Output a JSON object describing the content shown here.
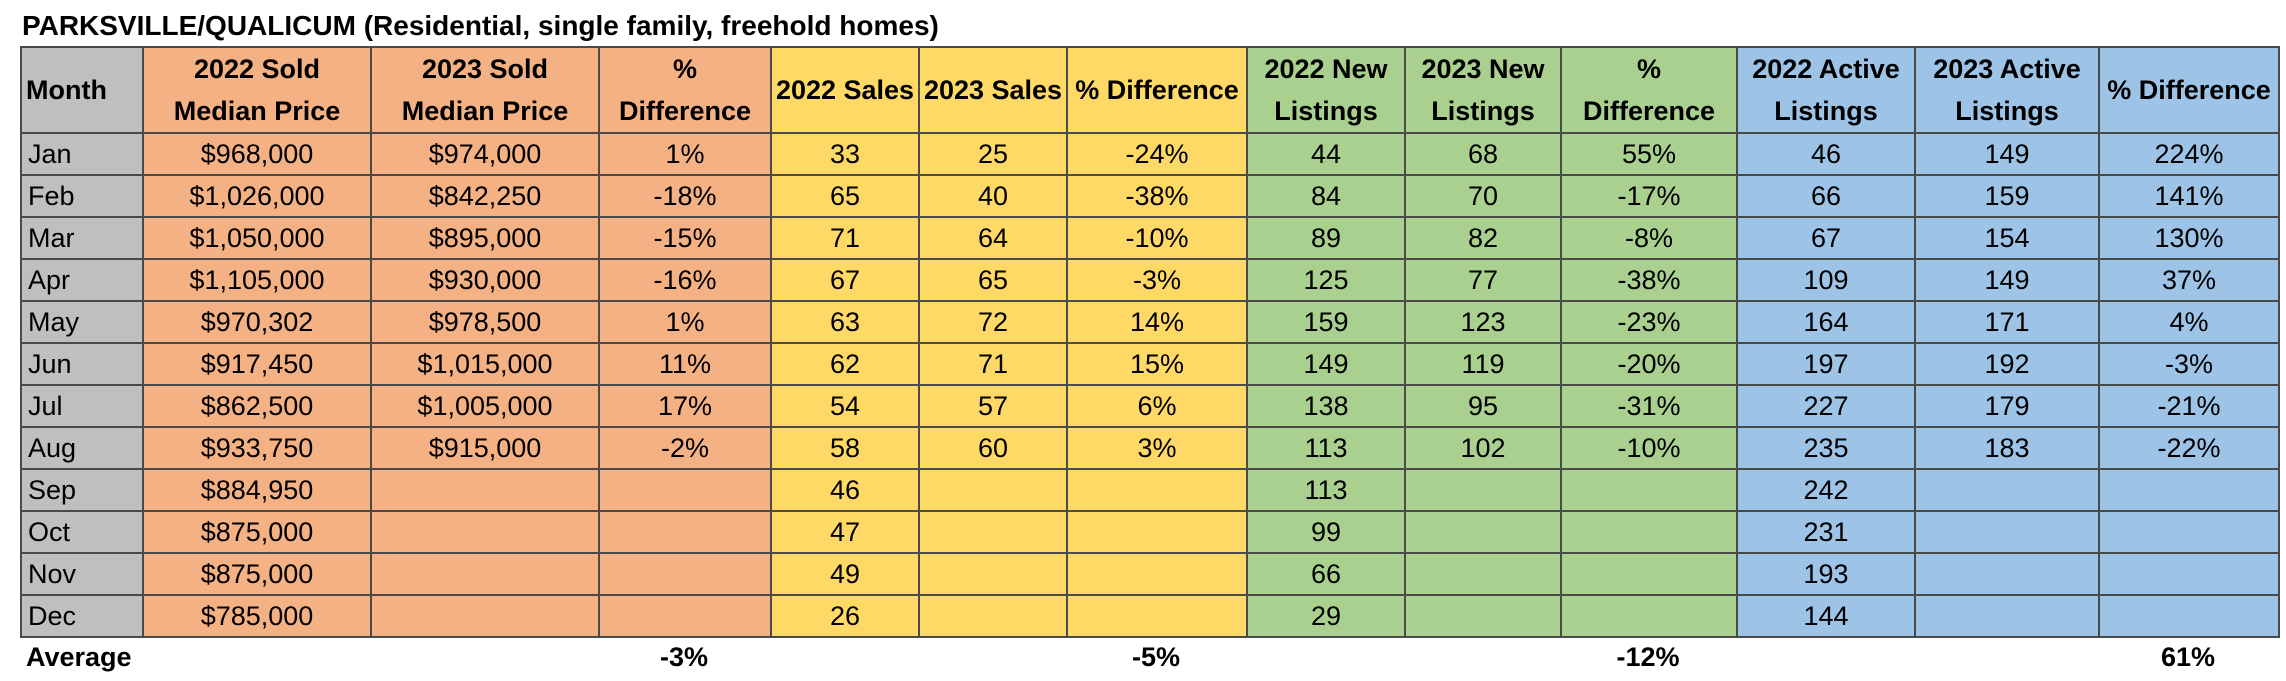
{
  "title": "PARKSVILLE/QUALICUM (Residential, single family, freehold homes)",
  "colors": {
    "month": "#bfbfbf",
    "price": "#f4b183",
    "sales": "#ffd966",
    "new_listings": "#a9d08e",
    "active_listings": "#9dc3e6"
  },
  "headers": {
    "month": "Month",
    "sold_2022_l1": "2022 Sold",
    "sold_2022_l2": "Median Price",
    "sold_2023_l1": "2023 Sold",
    "sold_2023_l2": "Median Price",
    "price_diff_l1": "%",
    "price_diff_l2": "Difference",
    "sales_2022": "2022 Sales",
    "sales_2023": "2023 Sales",
    "sales_diff": "% Difference",
    "new_2022_l1": "2022 New",
    "new_2022_l2": "Listings",
    "new_2023_l1": "2023 New",
    "new_2023_l2": "Listings",
    "new_diff_l1": "%",
    "new_diff_l2": "Difference",
    "active_2022_l1": "2022 Active",
    "active_2022_l2": "Listings",
    "active_2023_l1": "2023 Active",
    "active_2023_l2": "Listings",
    "active_diff": "% Difference"
  },
  "rows": [
    {
      "month": "Jan",
      "price_2022": "$968,000",
      "price_2023": "$974,000",
      "price_diff": "1%",
      "sales_2022": "33",
      "sales_2023": "25",
      "sales_diff": "-24%",
      "new_2022": "44",
      "new_2023": "68",
      "new_diff": "55%",
      "active_2022": "46",
      "active_2023": "149",
      "active_diff": "224%"
    },
    {
      "month": "Feb",
      "price_2022": "$1,026,000",
      "price_2023": "$842,250",
      "price_diff": "-18%",
      "sales_2022": "65",
      "sales_2023": "40",
      "sales_diff": "-38%",
      "new_2022": "84",
      "new_2023": "70",
      "new_diff": "-17%",
      "active_2022": "66",
      "active_2023": "159",
      "active_diff": "141%"
    },
    {
      "month": "Mar",
      "price_2022": "$1,050,000",
      "price_2023": "$895,000",
      "price_diff": "-15%",
      "sales_2022": "71",
      "sales_2023": "64",
      "sales_diff": "-10%",
      "new_2022": "89",
      "new_2023": "82",
      "new_diff": "-8%",
      "active_2022": "67",
      "active_2023": "154",
      "active_diff": "130%"
    },
    {
      "month": "Apr",
      "price_2022": "$1,105,000",
      "price_2023": "$930,000",
      "price_diff": "-16%",
      "sales_2022": "67",
      "sales_2023": "65",
      "sales_diff": "-3%",
      "new_2022": "125",
      "new_2023": "77",
      "new_diff": "-38%",
      "active_2022": "109",
      "active_2023": "149",
      "active_diff": "37%"
    },
    {
      "month": "May",
      "price_2022": "$970,302",
      "price_2023": "$978,500",
      "price_diff": "1%",
      "sales_2022": "63",
      "sales_2023": "72",
      "sales_diff": "14%",
      "new_2022": "159",
      "new_2023": "123",
      "new_diff": "-23%",
      "active_2022": "164",
      "active_2023": "171",
      "active_diff": "4%"
    },
    {
      "month": "Jun",
      "price_2022": "$917,450",
      "price_2023": "$1,015,000",
      "price_diff": "11%",
      "sales_2022": "62",
      "sales_2023": "71",
      "sales_diff": "15%",
      "new_2022": "149",
      "new_2023": "119",
      "new_diff": "-20%",
      "active_2022": "197",
      "active_2023": "192",
      "active_diff": "-3%"
    },
    {
      "month": "Jul",
      "price_2022": "$862,500",
      "price_2023": "$1,005,000",
      "price_diff": "17%",
      "sales_2022": "54",
      "sales_2023": "57",
      "sales_diff": "6%",
      "new_2022": "138",
      "new_2023": "95",
      "new_diff": "-31%",
      "active_2022": "227",
      "active_2023": "179",
      "active_diff": "-21%"
    },
    {
      "month": "Aug",
      "price_2022": "$933,750",
      "price_2023": "$915,000",
      "price_diff": "-2%",
      "sales_2022": "58",
      "sales_2023": "60",
      "sales_diff": "3%",
      "new_2022": "113",
      "new_2023": "102",
      "new_diff": "-10%",
      "active_2022": "235",
      "active_2023": "183",
      "active_diff": "-22%"
    },
    {
      "month": "Sep",
      "price_2022": "$884,950",
      "price_2023": "",
      "price_diff": "",
      "sales_2022": "46",
      "sales_2023": "",
      "sales_diff": "",
      "new_2022": "113",
      "new_2023": "",
      "new_diff": "",
      "active_2022": "242",
      "active_2023": "",
      "active_diff": ""
    },
    {
      "month": "Oct",
      "price_2022": "$875,000",
      "price_2023": "",
      "price_diff": "",
      "sales_2022": "47",
      "sales_2023": "",
      "sales_diff": "",
      "new_2022": "99",
      "new_2023": "",
      "new_diff": "",
      "active_2022": "231",
      "active_2023": "",
      "active_diff": ""
    },
    {
      "month": "Nov",
      "price_2022": "$875,000",
      "price_2023": "",
      "price_diff": "",
      "sales_2022": "49",
      "sales_2023": "",
      "sales_diff": "",
      "new_2022": "66",
      "new_2023": "",
      "new_diff": "",
      "active_2022": "193",
      "active_2023": "",
      "active_diff": ""
    },
    {
      "month": "Dec",
      "price_2022": "$785,000",
      "price_2023": "",
      "price_diff": "",
      "sales_2022": "26",
      "sales_2023": "",
      "sales_diff": "",
      "new_2022": "29",
      "new_2023": "",
      "new_diff": "",
      "active_2022": "144",
      "active_2023": "",
      "active_diff": ""
    }
  ],
  "average": {
    "label": "Average",
    "price_diff": "-3%",
    "sales_diff": "-5%",
    "new_diff": "-12%",
    "active_diff": "61%"
  }
}
